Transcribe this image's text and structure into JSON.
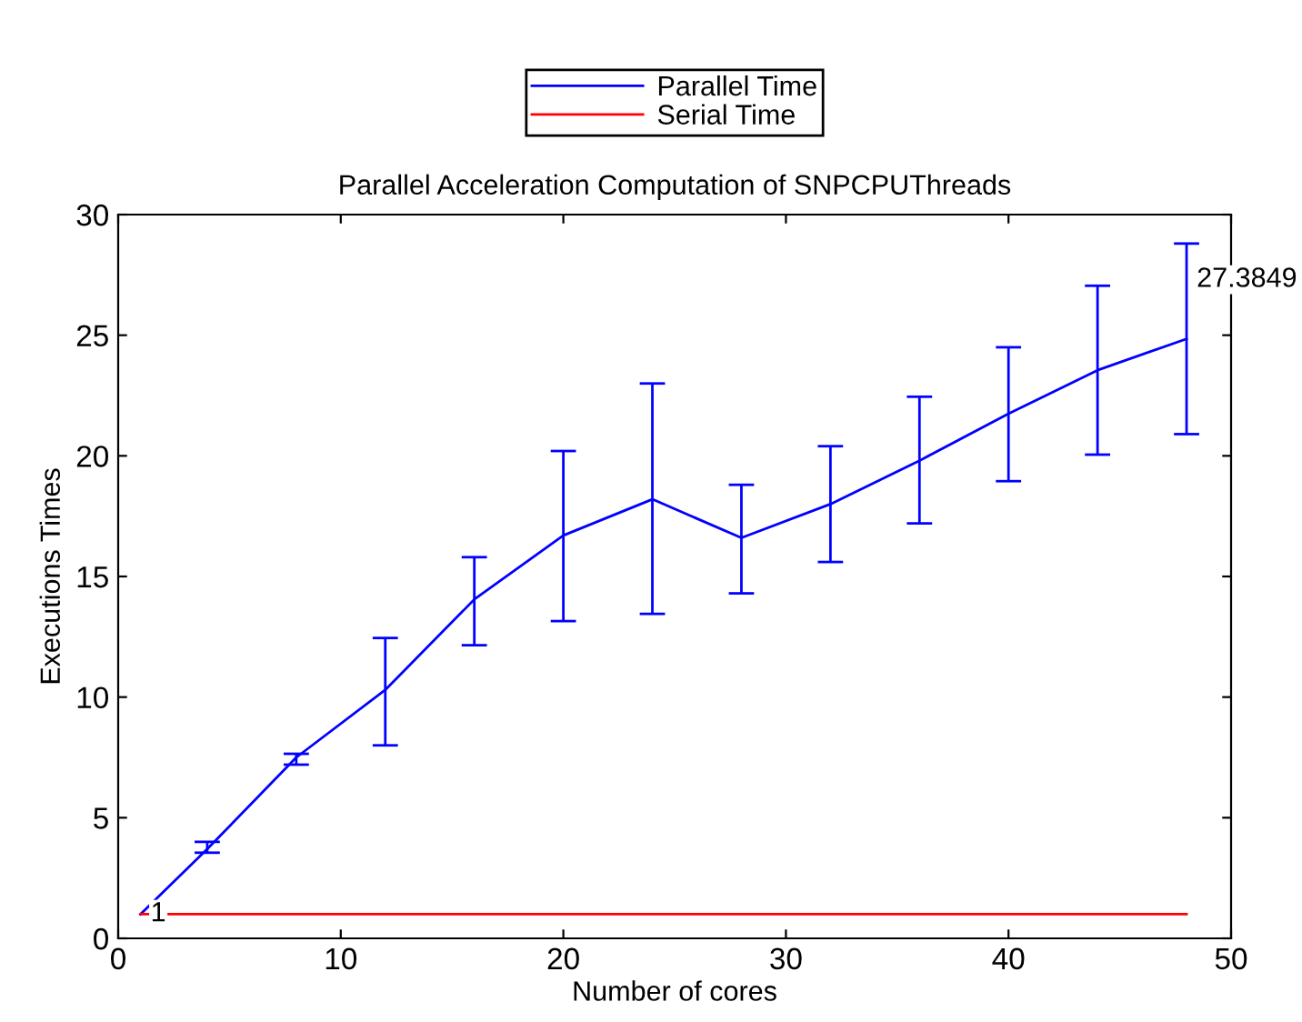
{
  "chart_data": {
    "type": "line",
    "title": "Parallel Acceleration Computation of SNPCPUThreads",
    "xlabel": "Number of cores",
    "ylabel": "Executions Times",
    "x": [
      1,
      4,
      8,
      12,
      16,
      20,
      24,
      28,
      32,
      36,
      40,
      44,
      48
    ],
    "series": [
      {
        "name": "Parallel Time",
        "color": "#0000ff",
        "values": [
          1.0,
          3.7,
          7.5,
          10.3,
          14.05,
          16.7,
          18.2,
          16.6,
          18.0,
          19.8,
          21.75,
          23.55,
          24.85
        ],
        "errors": [
          null,
          [
            3.55,
            4.0
          ],
          [
            7.2,
            7.65
          ],
          [
            8.0,
            12.45
          ],
          [
            12.15,
            15.8
          ],
          [
            13.15,
            20.2
          ],
          [
            13.45,
            23.0
          ],
          [
            14.3,
            18.8
          ],
          [
            15.6,
            20.4
          ],
          [
            17.2,
            22.45
          ],
          [
            18.95,
            24.5
          ],
          [
            20.05,
            27.05
          ],
          [
            20.9,
            28.8
          ]
        ]
      },
      {
        "name": "Serial Time",
        "color": "#ff0000",
        "values": [
          1,
          1,
          1,
          1,
          1,
          1,
          1,
          1,
          1,
          1,
          1,
          1,
          1
        ]
      }
    ],
    "annotations": [
      {
        "text": "27.3849",
        "x": 48,
        "y": 27.3
      },
      {
        "text": "1",
        "x": 1,
        "y": 1
      }
    ],
    "xlim": [
      0,
      50
    ],
    "xticks": [
      0,
      10,
      20,
      30,
      40,
      50
    ],
    "ylim": [
      0,
      30
    ],
    "yticks": [
      0,
      5,
      10,
      15,
      20,
      25,
      30
    ],
    "grid": false,
    "legend": "top",
    "marker": "none",
    "line_style": "solid"
  }
}
